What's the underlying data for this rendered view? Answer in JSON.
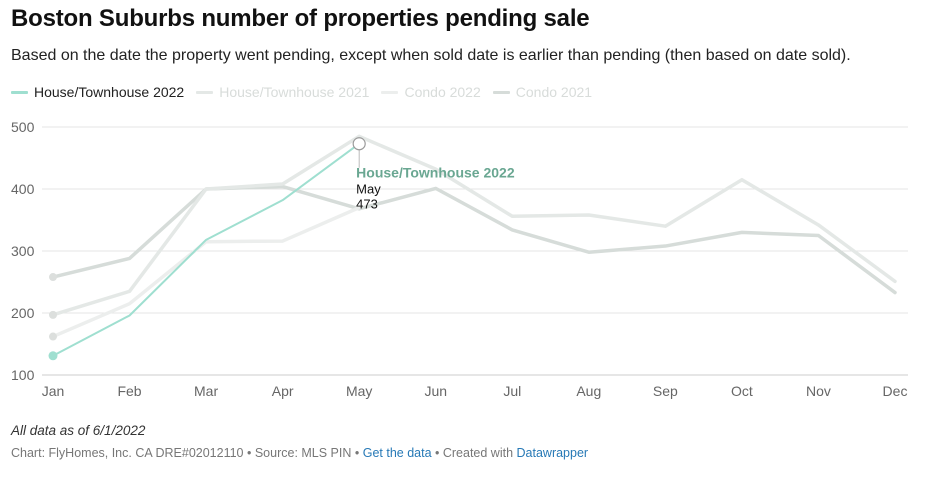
{
  "header": {
    "title": "Boston Suburbs number of properties pending sale",
    "subtitle": "Based on the date the property went pending, except when sold date is earlier than pending (then based on date sold)."
  },
  "chart_data": {
    "type": "line",
    "title": "Boston Suburbs number of properties pending sale",
    "xlabel": "",
    "ylabel": "",
    "ylim": [
      100,
      500
    ],
    "yticks": [
      500,
      400,
      300,
      200,
      100
    ],
    "grid": true,
    "legend_position": "top-left",
    "categories": [
      "Jan",
      "Feb",
      "Mar",
      "Apr",
      "May",
      "Jun",
      "Jul",
      "Aug",
      "Sep",
      "Oct",
      "Nov",
      "Dec"
    ],
    "series": [
      {
        "name": "Condo 2021",
        "color": "#d6dcd9",
        "values": [
          258,
          288,
          400,
          404,
          368,
          401,
          334,
          298,
          308,
          330,
          325,
          233
        ]
      },
      {
        "name": "House/Townhouse 2021",
        "color": "#e4e8e6",
        "values": [
          197,
          235,
          400,
          408,
          485,
          432,
          356,
          358,
          340,
          415,
          342,
          251
        ]
      },
      {
        "name": "Condo 2022",
        "color": "#eceeed",
        "values": [
          162,
          215,
          315,
          316,
          370,
          null,
          null,
          null,
          null,
          null,
          null,
          null
        ]
      },
      {
        "name": "House/Townhouse 2022",
        "color": "#9fdfd0",
        "values": [
          131,
          196,
          318,
          382,
          473,
          null,
          null,
          null,
          null,
          null,
          null,
          null
        ]
      }
    ],
    "annotation": {
      "series": "House/Townhouse 2022",
      "month": "May",
      "value": "473"
    }
  },
  "legend": [
    {
      "label": "House/Townhouse 2022",
      "color": "#9fdfd0",
      "active": true
    },
    {
      "label": "House/Townhouse 2021",
      "color": "#e4e8e6",
      "active": false
    },
    {
      "label": "Condo 2022",
      "color": "#eceeed",
      "active": false
    },
    {
      "label": "Condo 2021",
      "color": "#d6dcd9",
      "active": false
    }
  ],
  "footer": {
    "note": "All data as of 6/1/2022",
    "credit_prefix": "Chart: FlyHomes, Inc. CA DRE#02012110 • Source: MLS PIN • ",
    "get_data": "Get the data",
    "created_with": " • Created with ",
    "tool": "Datawrapper"
  }
}
